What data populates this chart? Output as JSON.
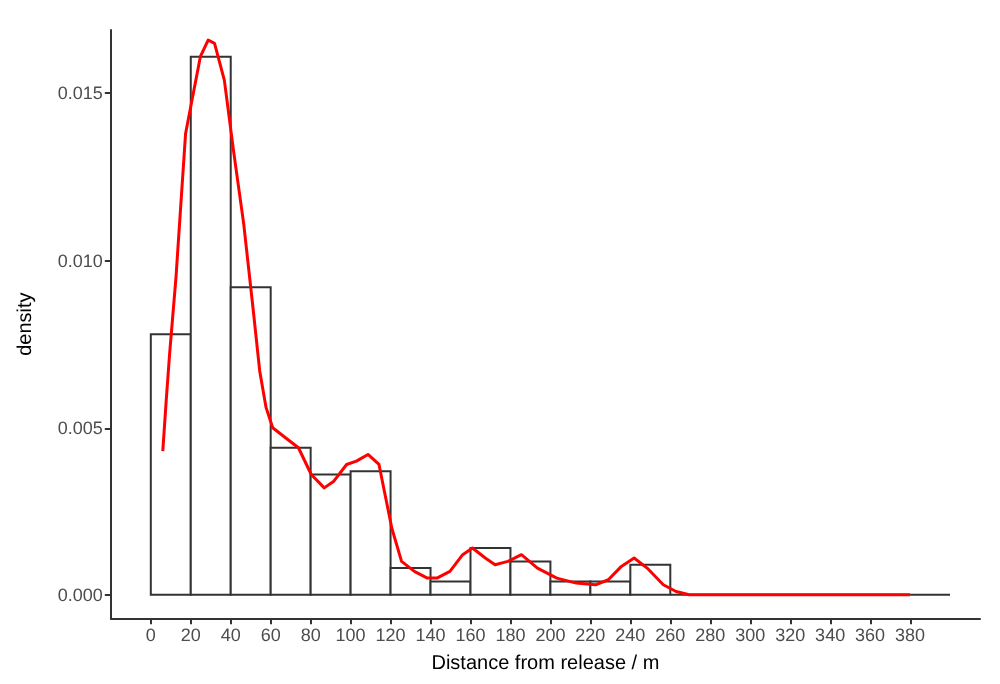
{
  "chart_data": {
    "type": "histogram",
    "xlabel": "Distance from release / m",
    "ylabel": "density",
    "bins": [
      0,
      20,
      40,
      60,
      80,
      100,
      120,
      140,
      160,
      180,
      200,
      220,
      240,
      260,
      280,
      300,
      320,
      340,
      360,
      380,
      400
    ],
    "series": [
      {
        "color": "#333333",
        "values": [
          0.0078,
          0.0161,
          0.0092,
          0.0044,
          0.0036,
          0.0037,
          0.0008,
          0.0004,
          0.0014,
          0.001,
          0.0004,
          0.0004,
          0.0009,
          0,
          0,
          0,
          0,
          0,
          0,
          0
        ]
      },
      {
        "type": "line",
        "color": "#ff0000",
        "x": [
          6,
          7.7,
          9.4,
          12.6,
          17.4,
          20.6,
          24.8,
          28.7,
          31.9,
          36.8,
          41.6,
          46.5,
          51.3,
          54.5,
          57.7,
          61,
          67.4,
          73.9,
          80.3,
          86.8,
          91.6,
          98,
          102.9,
          108.7,
          114.2,
          120.6,
          125.5,
          131.9,
          138.4,
          143.2,
          149.7,
          156.1,
          161,
          167.4,
          172.3,
          178.7,
          185.5,
          193.5,
          203.2,
          212.9,
          222.6,
          229,
          235.5,
          241.9,
          248.4,
          256.5,
          262.9,
          269.4,
          300,
          340,
          380
        ],
        "values": [
          0.0043,
          0.0058,
          0.0072,
          0.0095,
          0.0138,
          0.0148,
          0.0161,
          0.0166,
          0.0165,
          0.0154,
          0.0132,
          0.0111,
          0.0085,
          0.0067,
          0.0056,
          0.005,
          0.0047,
          0.0044,
          0.0036,
          0.0032,
          0.0034,
          0.0039,
          0.004,
          0.0042,
          0.0039,
          0.002,
          0.001,
          0.0007,
          0.0005,
          0.0005,
          0.0007,
          0.0012,
          0.0014,
          0.0011,
          0.0009,
          0.001,
          0.0012,
          0.0008,
          0.0005,
          0.00035,
          0.0003,
          0.00045,
          0.00085,
          0.0011,
          0.0008,
          0.0003,
          0.0001,
          0,
          0,
          0,
          0
        ]
      }
    ],
    "xlim": [
      -20,
      415
    ],
    "xticks": [
      0,
      20,
      40,
      60,
      80,
      100,
      120,
      140,
      160,
      180,
      200,
      220,
      240,
      260,
      280,
      300,
      320,
      340,
      360,
      380
    ],
    "ylim": [
      -0.0007,
      0.0169
    ],
    "yticks": [
      {
        "value": 0,
        "label": "0.000"
      },
      {
        "value": 0.005,
        "label": "0.005"
      },
      {
        "value": 0.01,
        "label": "0.010"
      },
      {
        "value": 0.015,
        "label": "0.015"
      }
    ],
    "grid": false
  }
}
